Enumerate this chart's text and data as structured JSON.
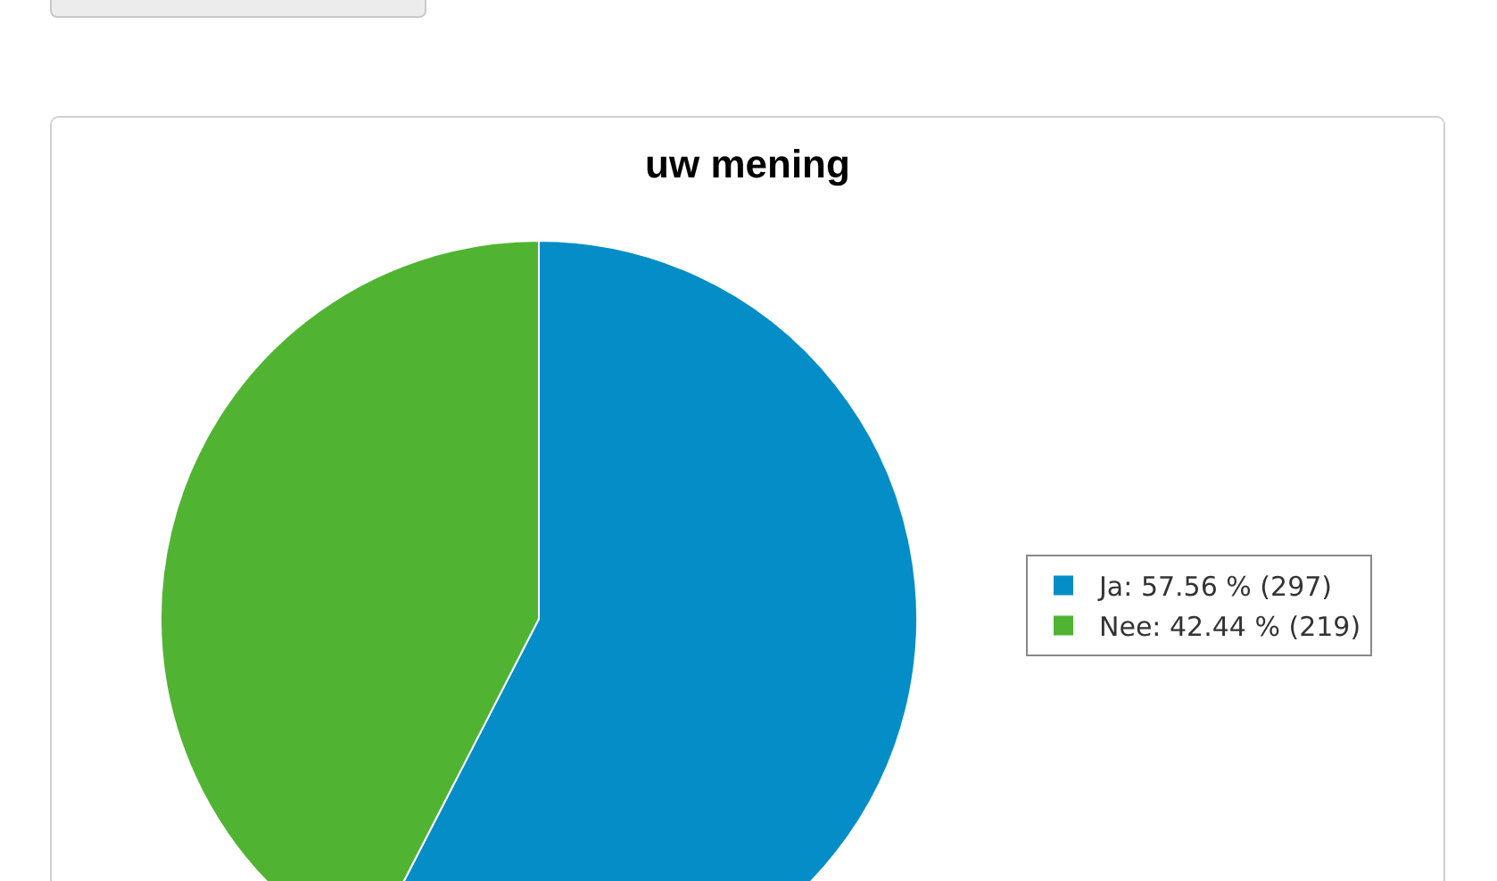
{
  "chart_data": {
    "type": "pie",
    "title": "uw mening",
    "categories": [
      "Ja: 57.56 % (297)",
      "Nee: 42.44 % (219)"
    ],
    "values": [
      57.56,
      42.44
    ],
    "colors": [
      "#058dc7",
      "#50b432"
    ],
    "legend": "right"
  }
}
